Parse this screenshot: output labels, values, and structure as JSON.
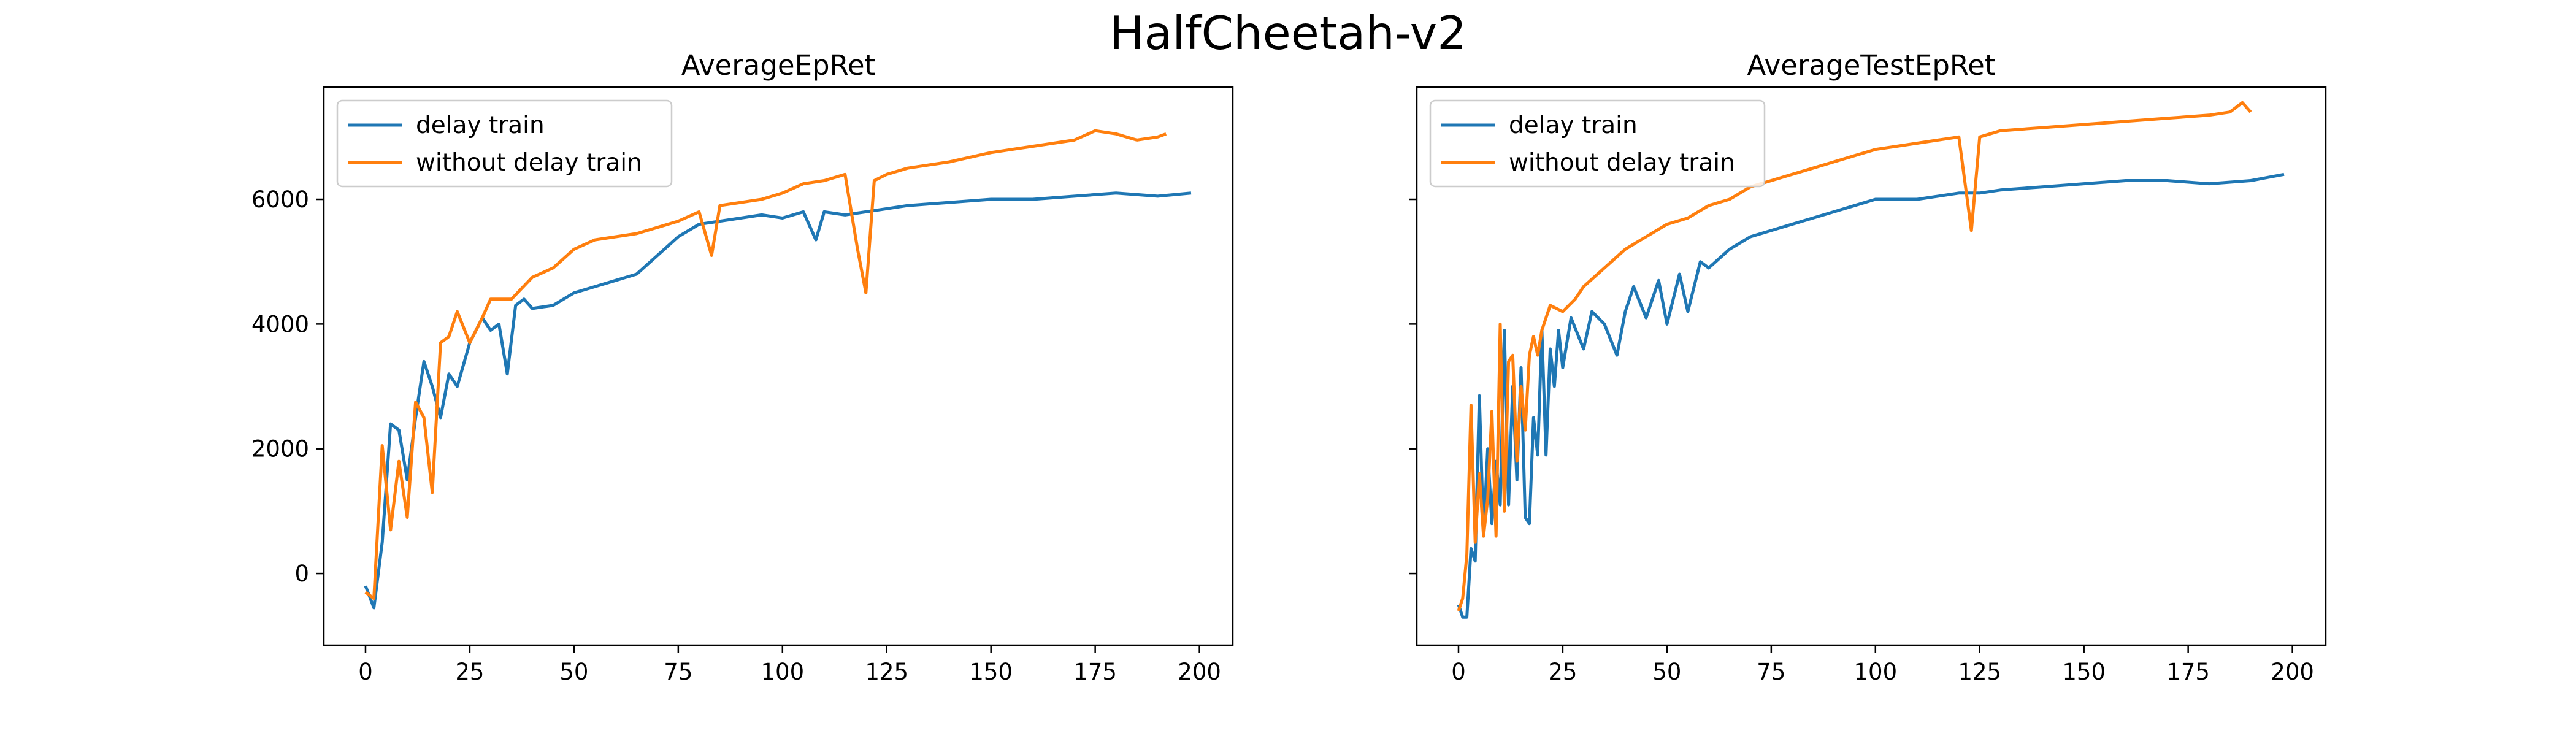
{
  "figure_title": "HalfCheetah-v2",
  "colors": {
    "delay": "#1f77b4",
    "without_delay": "#ff7f0e"
  },
  "chart_data": [
    {
      "type": "line",
      "title": "AverageEpRet",
      "xlabel": "",
      "ylabel": "",
      "xlim": [
        -10,
        208
      ],
      "ylim": [
        -1150,
        7800
      ],
      "xticks": [
        0,
        25,
        50,
        75,
        100,
        125,
        150,
        175,
        200
      ],
      "yticks": [
        0,
        2000,
        4000,
        6000
      ],
      "legend_position": "upper-left",
      "grid": false,
      "series": [
        {
          "name": "delay train",
          "color": "#1f77b4",
          "x": [
            0,
            2,
            4,
            6,
            8,
            10,
            12,
            14,
            16,
            18,
            20,
            22,
            25,
            28,
            30,
            32,
            34,
            36,
            38,
            40,
            45,
            50,
            55,
            60,
            65,
            70,
            75,
            80,
            85,
            90,
            95,
            100,
            105,
            108,
            110,
            115,
            120,
            125,
            130,
            140,
            150,
            160,
            170,
            180,
            190,
            198
          ],
          "y": [
            -200,
            -550,
            500,
            2400,
            2300,
            1500,
            2500,
            3400,
            3000,
            2500,
            3200,
            3000,
            3700,
            4100,
            3900,
            4000,
            3200,
            4300,
            4400,
            4250,
            4300,
            4500,
            4600,
            4700,
            4800,
            5100,
            5400,
            5600,
            5650,
            5700,
            5750,
            5700,
            5800,
            5350,
            5800,
            5750,
            5800,
            5850,
            5900,
            5950,
            6000,
            6000,
            6050,
            6100,
            6050,
            6100
          ]
        },
        {
          "name": "without delay train",
          "color": "#ff7f0e",
          "x": [
            0,
            2,
            4,
            6,
            8,
            10,
            12,
            14,
            16,
            18,
            20,
            22,
            25,
            28,
            30,
            35,
            40,
            45,
            50,
            55,
            60,
            65,
            70,
            75,
            80,
            83,
            85,
            90,
            95,
            100,
            105,
            110,
            115,
            118,
            120,
            122,
            125,
            130,
            140,
            150,
            160,
            170,
            175,
            180,
            185,
            190,
            192
          ],
          "y": [
            -300,
            -400,
            2050,
            700,
            1800,
            900,
            2750,
            2500,
            1300,
            3700,
            3800,
            4200,
            3700,
            4100,
            4400,
            4400,
            4750,
            4900,
            5200,
            5350,
            5400,
            5450,
            5550,
            5650,
            5800,
            5100,
            5900,
            5950,
            6000,
            6100,
            6250,
            6300,
            6400,
            5200,
            4500,
            6300,
            6400,
            6500,
            6600,
            6750,
            6850,
            6950,
            7100,
            7050,
            6950,
            7000,
            7050
          ]
        }
      ]
    },
    {
      "type": "line",
      "title": "AverageTestEpRet",
      "xlabel": "",
      "ylabel": "",
      "xlim": [
        -10,
        208
      ],
      "ylim": [
        -1150,
        7800
      ],
      "xticks": [
        0,
        25,
        50,
        75,
        100,
        125,
        150,
        175,
        200
      ],
      "yticks": [
        0,
        2000,
        4000,
        6000
      ],
      "legend_position": "upper-left",
      "grid": false,
      "series": [
        {
          "name": "delay train",
          "color": "#1f77b4",
          "x": [
            0,
            1,
            2,
            3,
            4,
            5,
            6,
            7,
            8,
            9,
            10,
            11,
            12,
            13,
            14,
            15,
            16,
            17,
            18,
            19,
            20,
            21,
            22,
            23,
            24,
            25,
            27,
            30,
            32,
            35,
            38,
            40,
            42,
            45,
            48,
            50,
            53,
            55,
            58,
            60,
            65,
            70,
            75,
            80,
            85,
            90,
            95,
            100,
            110,
            120,
            125,
            130,
            140,
            150,
            160,
            170,
            180,
            190,
            198
          ],
          "y": [
            -500,
            -700,
            -700,
            400,
            200,
            2850,
            600,
            2000,
            800,
            1800,
            1100,
            3900,
            1100,
            3000,
            1500,
            3300,
            900,
            800,
            2500,
            1900,
            3900,
            1900,
            3600,
            3000,
            3900,
            3300,
            4100,
            3600,
            4200,
            4000,
            3500,
            4200,
            4600,
            4100,
            4700,
            4000,
            4800,
            4200,
            5000,
            4900,
            5200,
            5400,
            5500,
            5600,
            5700,
            5800,
            5900,
            6000,
            6000,
            6100,
            6100,
            6150,
            6200,
            6250,
            6300,
            6300,
            6250,
            6300,
            6400
          ]
        },
        {
          "name": "without delay train",
          "color": "#ff7f0e",
          "x": [
            0,
            1,
            2,
            3,
            4,
            5,
            6,
            7,
            8,
            9,
            10,
            11,
            12,
            13,
            14,
            15,
            16,
            17,
            18,
            19,
            20,
            22,
            25,
            28,
            30,
            35,
            40,
            45,
            50,
            55,
            60,
            65,
            70,
            75,
            80,
            85,
            90,
            95,
            100,
            105,
            110,
            115,
            120,
            123,
            125,
            130,
            140,
            150,
            160,
            170,
            180,
            185,
            188,
            190
          ],
          "y": [
            -600,
            -400,
            300,
            2700,
            500,
            1600,
            600,
            1200,
            2600,
            600,
            4000,
            1000,
            3400,
            3500,
            1800,
            3000,
            2300,
            3500,
            3800,
            3500,
            3900,
            4300,
            4200,
            4400,
            4600,
            4900,
            5200,
            5400,
            5600,
            5700,
            5900,
            6000,
            6200,
            6300,
            6400,
            6500,
            6600,
            6700,
            6800,
            6850,
            6900,
            6950,
            7000,
            5500,
            7000,
            7100,
            7150,
            7200,
            7250,
            7300,
            7350,
            7400,
            7550,
            7400
          ]
        }
      ]
    }
  ]
}
